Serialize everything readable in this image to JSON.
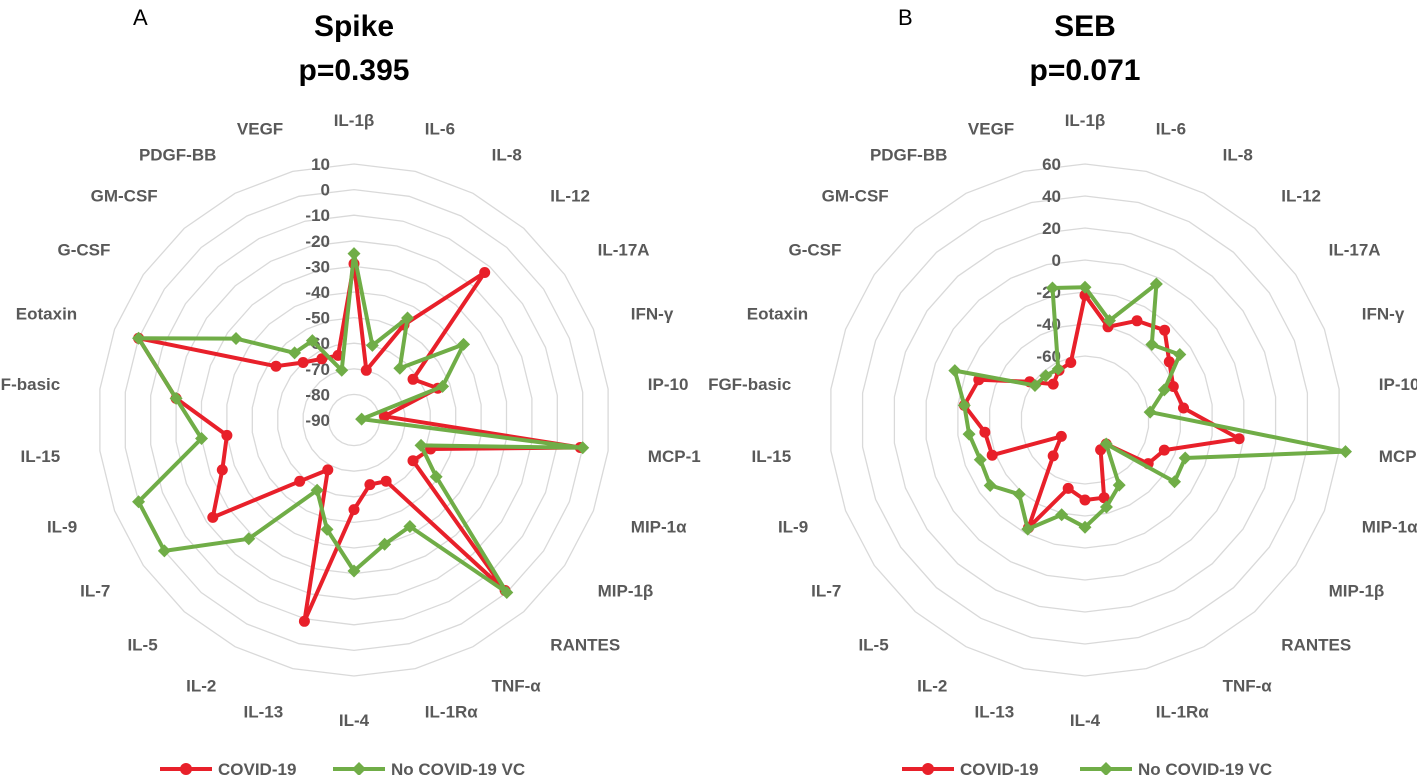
{
  "chart_data": [
    {
      "type": "radar",
      "panel": "A",
      "title": "Spike",
      "subtitle": "p=0.395",
      "categories": [
        "IL-1β",
        "IL-6",
        "IL-8",
        "IL-12",
        "IL-17A",
        "IFN-γ",
        "IP-10",
        "MCP-1",
        "MIP-1α",
        "MIP-1β",
        "RANTES",
        "TNF-α",
        "IL-1Rα",
        "IL-4",
        "IL-13",
        "IL-2",
        "IL-5",
        "IL-7",
        "IL-9",
        "IL-15",
        "FGF-basic",
        "Eotaxin",
        "G-CSF",
        "GM-CSF",
        "PDGF-BB",
        "VEGF"
      ],
      "rlim": [
        -90,
        10
      ],
      "ticks": [
        10,
        0,
        -10,
        -20,
        -30,
        -40,
        -50,
        -60,
        -70,
        -80,
        -90
      ],
      "tick_labels": [
        "10",
        "0",
        "-10",
        "-20",
        "-30",
        "-40",
        "-50",
        "-60",
        "-70",
        "-80",
        "-90"
      ],
      "series": [
        {
          "name": "COVID-19",
          "color": "#e8202a",
          "marker": "circle",
          "values": [
            -29,
            -70,
            -48,
            -13,
            -62,
            -55,
            -78,
            -1,
            -58,
            -62,
            -1,
            -63,
            -64,
            -55,
            -9,
            -68,
            -58,
            -23,
            -35,
            -40,
            -20,
            0,
            -53,
            -60,
            -63,
            -64
          ]
        },
        {
          "name": "No COVID-19 VC",
          "color": "#70ad47",
          "marker": "diamond",
          "values": [
            -25,
            -60,
            -45,
            -63,
            -38,
            -53,
            -87,
            0,
            -62,
            -51,
            0,
            -43,
            -40,
            -31,
            -46,
            -59,
            -28,
            0,
            0,
            -30,
            -20,
            0,
            -34,
            -55,
            -55,
            -70
          ]
        }
      ],
      "legend": [
        "COVID-19",
        "No COVID-19 VC"
      ]
    },
    {
      "type": "radar",
      "panel": "B",
      "title": "SEB",
      "subtitle": "p=0.071",
      "categories": [
        "IL-1β",
        "IL-6",
        "IL-8",
        "IL-12",
        "IL-17A",
        "IFN-γ",
        "IP-10",
        "MCP-1",
        "MIP-1α",
        "MIP-1β",
        "RANTES",
        "TNF-α",
        "IL-1Rα",
        "IL-4",
        "IL-13",
        "IL-2",
        "IL-5",
        "IL-7",
        "IL-9",
        "IL-15",
        "FGF-basic",
        "Eotaxin",
        "G-CSF",
        "GM-CSF",
        "PDGF-BB",
        "VEGF"
      ],
      "rlim": [
        -100,
        60
      ],
      "ticks": [
        60,
        40,
        20,
        0,
        -20,
        -40,
        -60
      ],
      "tick_labels": [
        "60",
        "40",
        "20",
        "0",
        "-20",
        "-40",
        "-60"
      ],
      "series": [
        {
          "name": "COVID-19",
          "color": "#e8202a",
          "marker": "circle",
          "values": [
            -22,
            -40,
            -30,
            -25,
            -36,
            -41,
            -38,
            -3,
            -47,
            -52,
            -80,
            -79,
            -50,
            -50,
            -56,
            -24,
            -70,
            -82,
            -38,
            -37,
            -24,
            -29,
            -58,
            -70,
            -65,
            -63
          ]
        },
        {
          "name": "No COVID-19 VC",
          "color": "#70ad47",
          "marker": "diamond",
          "values": [
            -17,
            -36,
            -4,
            -37,
            -28,
            -47,
            -59,
            64,
            -33,
            -32,
            -80,
            -54,
            -44,
            -33,
            -39,
            -23,
            -38,
            -28,
            -30,
            -27,
            -24,
            -13,
            -62,
            -63,
            -64,
            -15
          ]
        }
      ],
      "legend": [
        "COVID-19",
        "No COVID-19 VC"
      ]
    }
  ]
}
